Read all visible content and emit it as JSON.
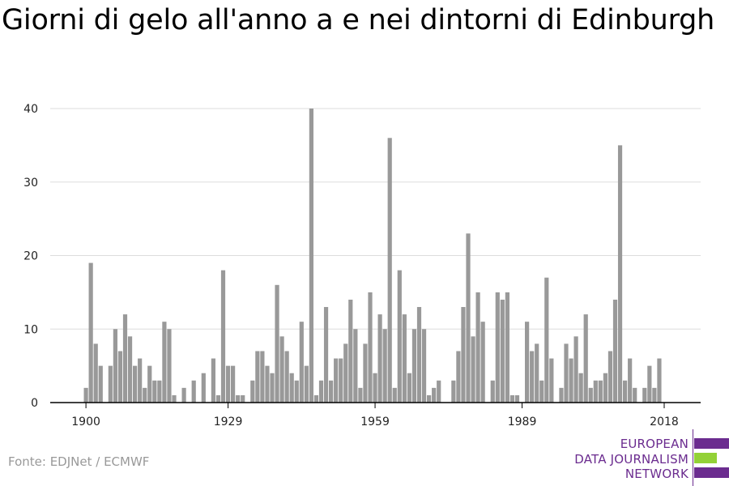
{
  "title": "Giorni di gelo all'anno a e nei dintorni di Edinburgh",
  "source": "Fonte: EDJNet / ECMWF",
  "logo": {
    "lines": [
      "EUROPEAN",
      "DATA JOURNALISM",
      "NETWORK"
    ],
    "colors": {
      "purple": "#6b2c8f",
      "green": "#93d137"
    }
  },
  "chart_data": {
    "type": "bar",
    "title": "Giorni di gelo all'anno a e nei dintorni di Edinburgh",
    "xlabel": "",
    "ylabel": "",
    "x": [
      1900,
      1901,
      1902,
      1903,
      1904,
      1905,
      1906,
      1907,
      1908,
      1909,
      1910,
      1911,
      1912,
      1913,
      1914,
      1915,
      1916,
      1917,
      1918,
      1919,
      1920,
      1921,
      1922,
      1923,
      1924,
      1925,
      1926,
      1927,
      1928,
      1929,
      1930,
      1931,
      1932,
      1933,
      1934,
      1935,
      1936,
      1937,
      1938,
      1939,
      1940,
      1941,
      1942,
      1943,
      1944,
      1945,
      1946,
      1947,
      1948,
      1949,
      1950,
      1951,
      1952,
      1953,
      1954,
      1955,
      1956,
      1957,
      1958,
      1959,
      1960,
      1961,
      1962,
      1963,
      1964,
      1965,
      1966,
      1967,
      1968,
      1969,
      1970,
      1971,
      1972,
      1973,
      1974,
      1975,
      1976,
      1977,
      1978,
      1979,
      1980,
      1981,
      1982,
      1983,
      1984,
      1985,
      1986,
      1987,
      1988,
      1989,
      1990,
      1991,
      1992,
      1993,
      1994,
      1995,
      1996,
      1997,
      1998,
      1999,
      2000,
      2001,
      2002,
      2003,
      2004,
      2005,
      2006,
      2007,
      2008,
      2009,
      2010,
      2011,
      2012,
      2013,
      2014,
      2015,
      2016,
      2017,
      2018
    ],
    "values": [
      2,
      19,
      8,
      5,
      0,
      5,
      10,
      7,
      12,
      9,
      5,
      6,
      2,
      5,
      3,
      3,
      11,
      10,
      1,
      0,
      2,
      0,
      3,
      0,
      4,
      0,
      6,
      1,
      18,
      5,
      5,
      1,
      1,
      0,
      3,
      7,
      7,
      5,
      4,
      16,
      9,
      7,
      4,
      3,
      11,
      5,
      40,
      1,
      3,
      13,
      3,
      6,
      6,
      8,
      14,
      10,
      2,
      8,
      15,
      4,
      12,
      10,
      36,
      2,
      18,
      12,
      4,
      10,
      13,
      10,
      1,
      2,
      3,
      0,
      0,
      3,
      7,
      13,
      23,
      9,
      15,
      11,
      0,
      3,
      15,
      14,
      15,
      1,
      1,
      0,
      11,
      7,
      8,
      3,
      17,
      6,
      0,
      2,
      8,
      6,
      9,
      4,
      12,
      2,
      3,
      3,
      4,
      7,
      14,
      35,
      3,
      6,
      2,
      0,
      2,
      5,
      2,
      6,
      0
    ],
    "xticks": [
      1900,
      1929,
      1959,
      1989,
      2018
    ],
    "yticks": [
      0,
      10,
      20,
      30,
      40
    ],
    "ylim": [
      0,
      40
    ],
    "bar_color": "#999999",
    "grid_color": "#dddddd",
    "grid": true
  }
}
